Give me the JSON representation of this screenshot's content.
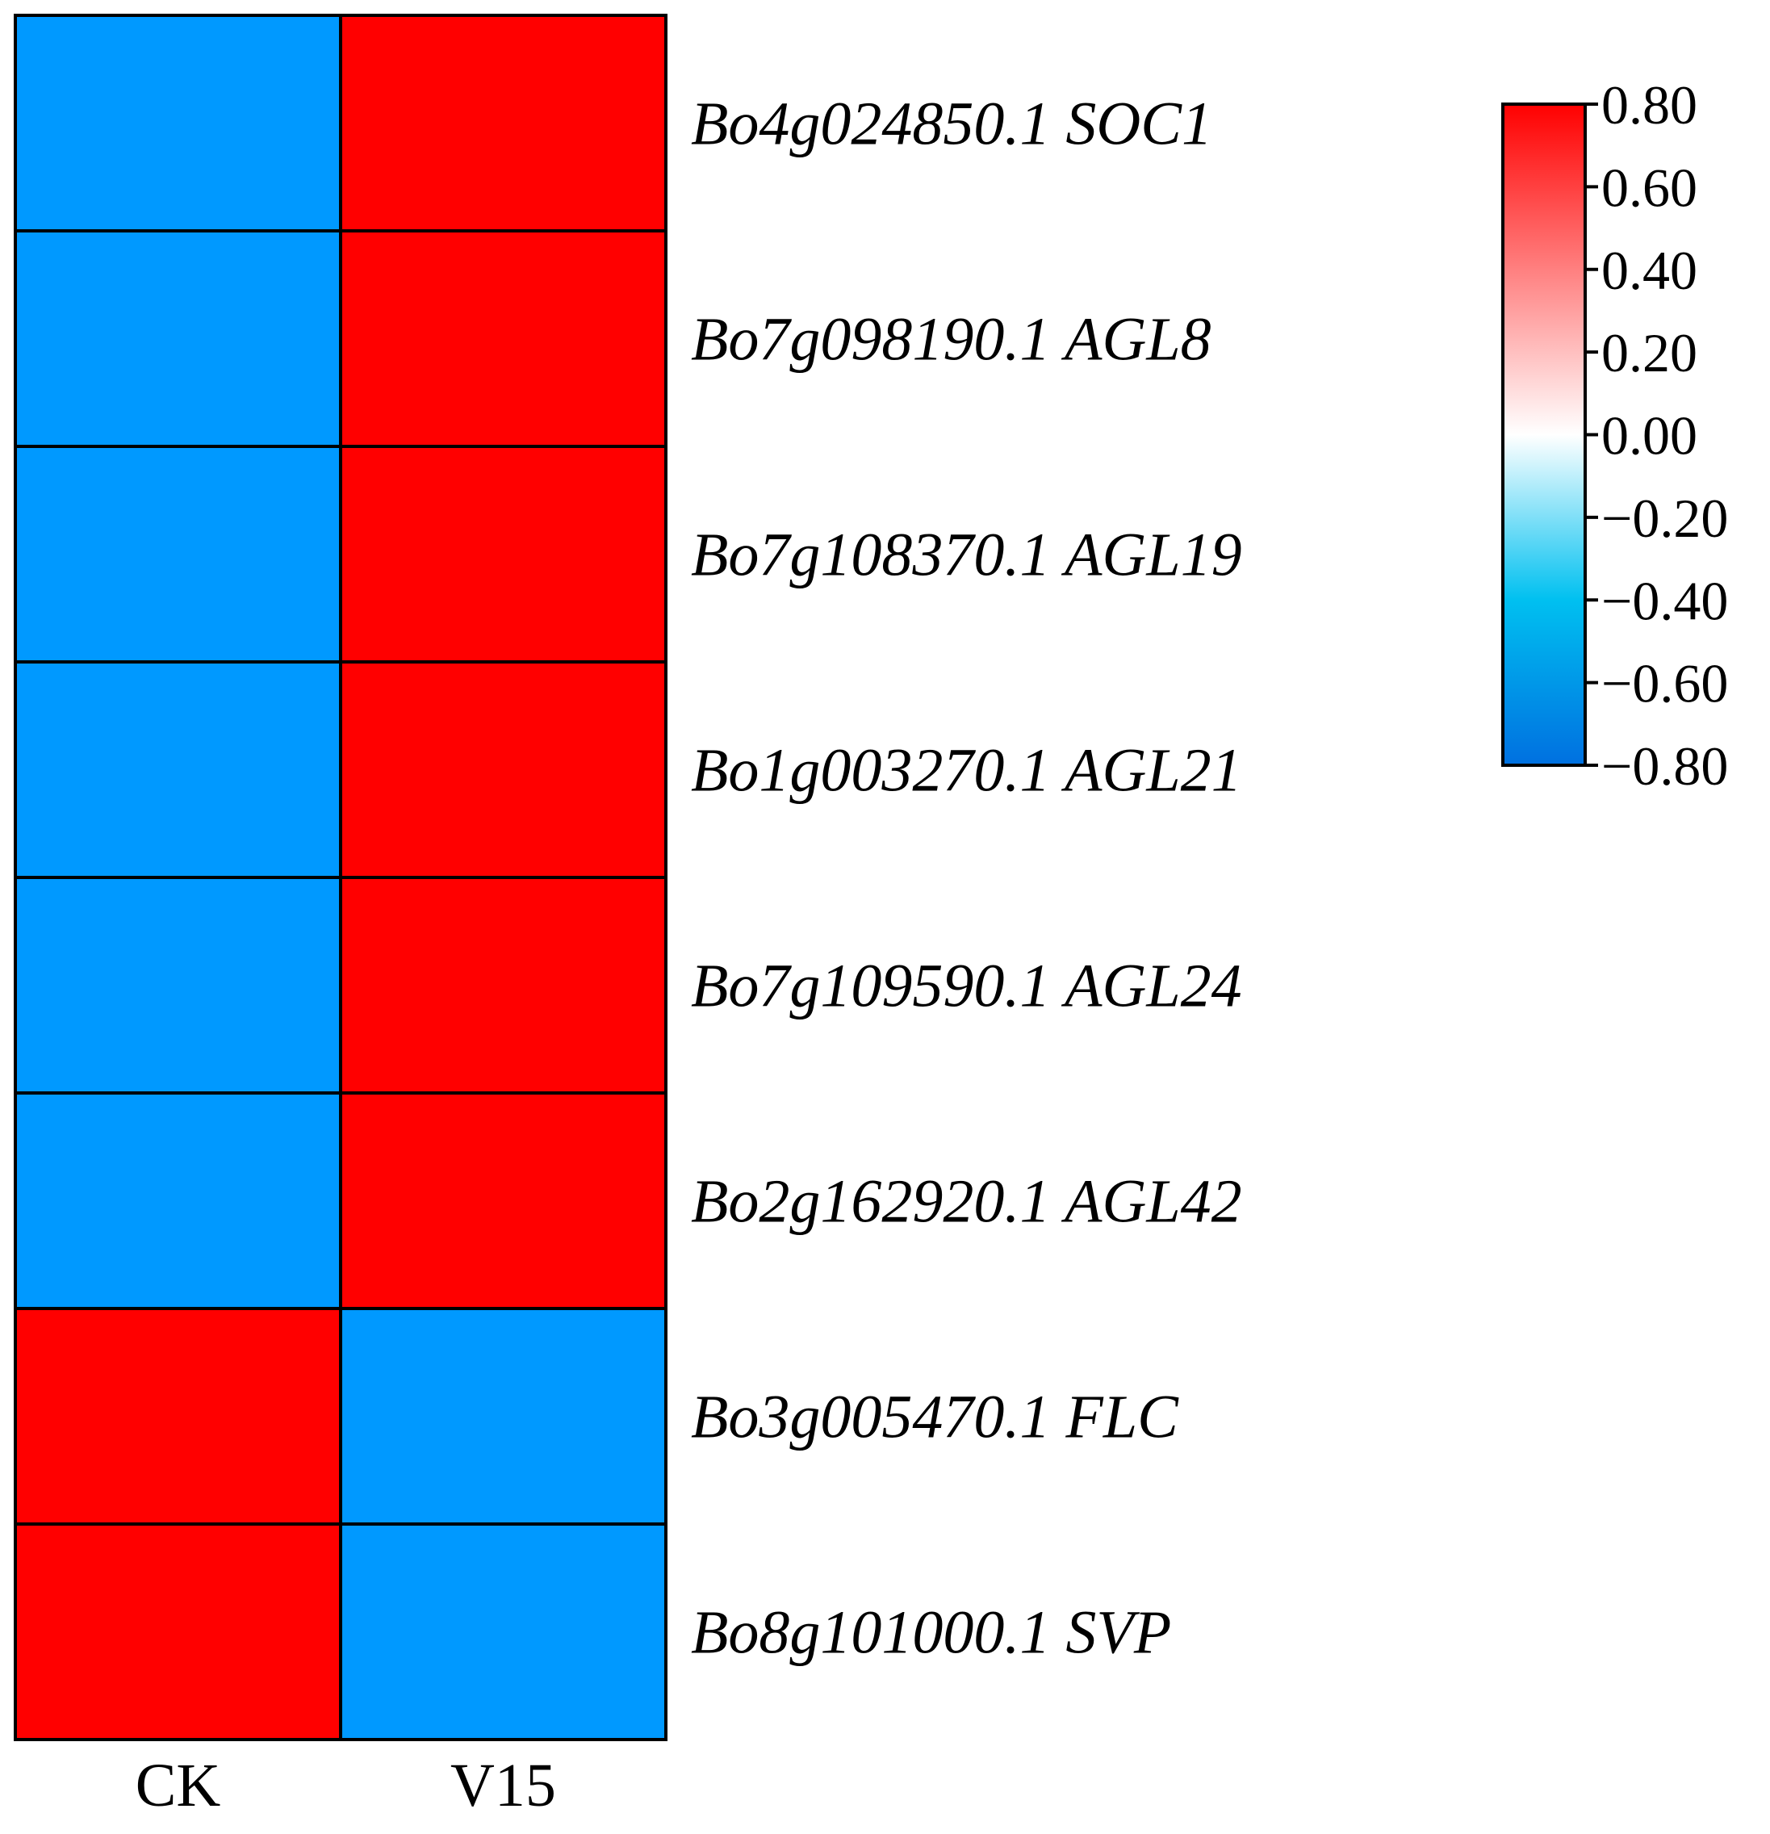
{
  "chart_data": {
    "type": "heatmap",
    "columns": [
      "CK",
      "V15"
    ],
    "rows": [
      "Bo4g024850.1 SOC1",
      "Bo7g098190.1 AGL8",
      "Bo7g108370.1 AGL19",
      "Bo1g003270.1 AGL21",
      "Bo7g109590.1 AGL24",
      "Bo2g162920.1 AGL42",
      "Bo3g005470.1 FLC",
      "Bo8g101000.1 SVP"
    ],
    "values": [
      [
        -0.71,
        0.71
      ],
      [
        -0.71,
        0.71
      ],
      [
        -0.71,
        0.71
      ],
      [
        -0.71,
        0.71
      ],
      [
        -0.71,
        0.71
      ],
      [
        -0.71,
        0.71
      ],
      [
        0.71,
        -0.71
      ],
      [
        0.71,
        -0.71
      ]
    ],
    "colorbar": {
      "min": -0.8,
      "max": 0.8,
      "ticks": [
        "0.80",
        "0.60",
        "0.40",
        "0.20",
        "0.00",
        "−0.20",
        "−0.40",
        "−0.60",
        "−0.80"
      ],
      "colors": {
        "high": "#ff0000",
        "mid": "#ffffff",
        "low_mid": "#00c0f0",
        "low": "#0070e0"
      }
    },
    "cell_colors": {
      "positive": "#ff0000",
      "negative": "#0099ff"
    },
    "xlabel": "",
    "ylabel": "",
    "title": ""
  }
}
